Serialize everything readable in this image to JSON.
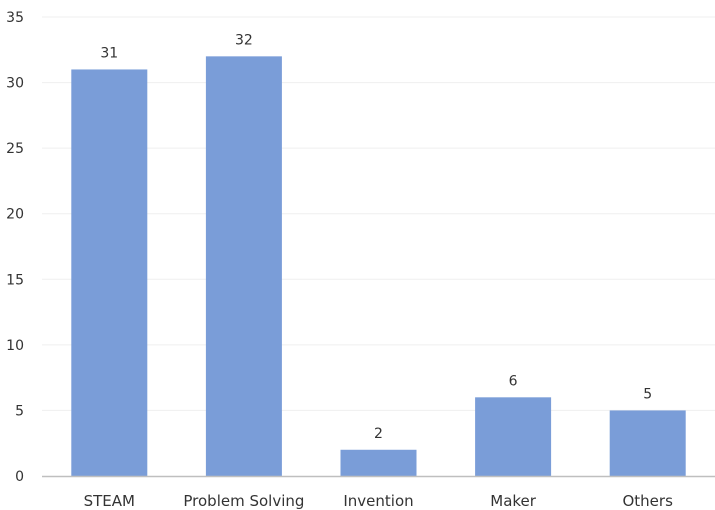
{
  "chart_data": {
    "type": "bar",
    "title": "",
    "xlabel": "",
    "ylabel": "",
    "categories": [
      "STEAM",
      "Problem Solving",
      "Invention",
      "Maker",
      "Others"
    ],
    "values": [
      31,
      32,
      2,
      6,
      5
    ],
    "ylim": [
      0,
      35
    ],
    "yticks": [
      0,
      5,
      10,
      15,
      20,
      25,
      30,
      35
    ],
    "grid": true,
    "data_labels": true,
    "bar_color": "#7a9dd8",
    "axis_color": "#bfbfbf",
    "grid_color": "#efefef",
    "text_color": "#333333"
  }
}
